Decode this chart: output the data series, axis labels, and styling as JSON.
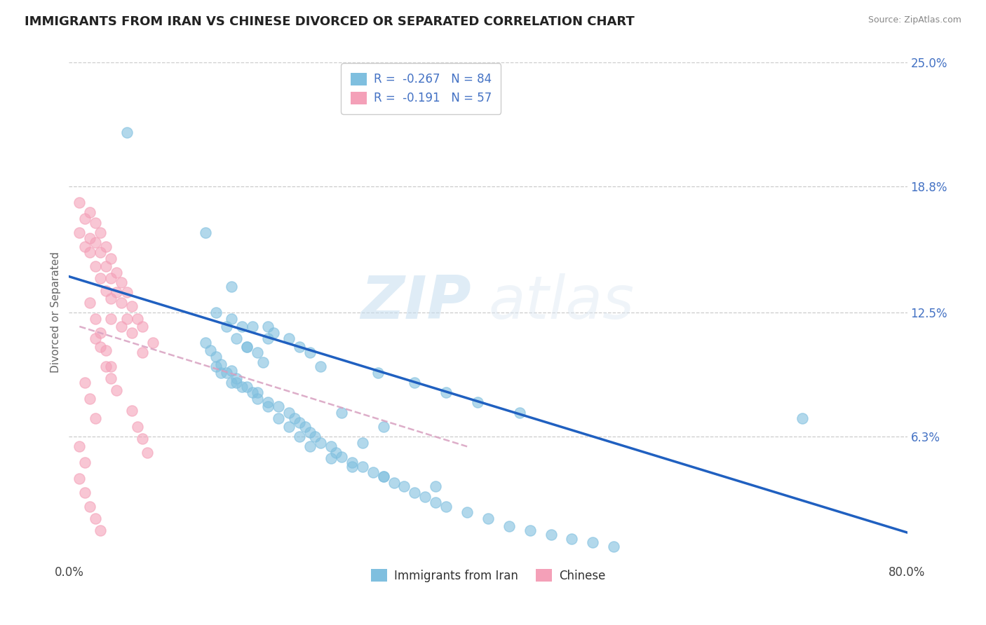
{
  "title": "IMMIGRANTS FROM IRAN VS CHINESE DIVORCED OR SEPARATED CORRELATION CHART",
  "source": "Source: ZipAtlas.com",
  "ylabel": "Divorced or Separated",
  "legend_label1": "Immigrants from Iran",
  "legend_label2": "Chinese",
  "r1": -0.267,
  "n1": 84,
  "r2": -0.191,
  "n2": 57,
  "xlim": [
    0.0,
    0.8
  ],
  "ylim": [
    0.0,
    0.25
  ],
  "xtick_labels": [
    "0.0%",
    "80.0%"
  ],
  "ytick_labels": [
    "25.0%",
    "18.8%",
    "12.5%",
    "6.3%"
  ],
  "ytick_vals": [
    0.25,
    0.188,
    0.125,
    0.063
  ],
  "watermark_zip": "ZIP",
  "watermark_atlas": "atlas",
  "color_iran": "#7fbfdf",
  "color_chinese": "#f4a0b8",
  "color_line_iran": "#2060c0",
  "color_line_chinese": "#d8a0c0",
  "background_color": "#ffffff",
  "line1_x0": 0.0,
  "line1_y0": 0.143,
  "line1_x1": 0.8,
  "line1_y1": 0.015,
  "line2_x0": 0.01,
  "line2_y0": 0.118,
  "line2_x1": 0.38,
  "line2_y1": 0.058,
  "iran_scatter_x": [
    0.055,
    0.13,
    0.155,
    0.175,
    0.19,
    0.195,
    0.14,
    0.15,
    0.16,
    0.17,
    0.18,
    0.185,
    0.155,
    0.165,
    0.17,
    0.19,
    0.21,
    0.22,
    0.23,
    0.24,
    0.14,
    0.145,
    0.15,
    0.155,
    0.16,
    0.165,
    0.175,
    0.18,
    0.19,
    0.2,
    0.21,
    0.215,
    0.22,
    0.225,
    0.23,
    0.235,
    0.24,
    0.25,
    0.255,
    0.26,
    0.27,
    0.28,
    0.29,
    0.3,
    0.31,
    0.32,
    0.33,
    0.34,
    0.35,
    0.36,
    0.38,
    0.4,
    0.42,
    0.44,
    0.46,
    0.48,
    0.5,
    0.52,
    0.295,
    0.33,
    0.36,
    0.39,
    0.43,
    0.13,
    0.135,
    0.14,
    0.145,
    0.155,
    0.16,
    0.17,
    0.18,
    0.19,
    0.2,
    0.21,
    0.22,
    0.23,
    0.25,
    0.27,
    0.3,
    0.28,
    0.35,
    0.7,
    0.3,
    0.26
  ],
  "iran_scatter_y": [
    0.215,
    0.165,
    0.138,
    0.118,
    0.118,
    0.115,
    0.125,
    0.118,
    0.112,
    0.108,
    0.105,
    0.1,
    0.122,
    0.118,
    0.108,
    0.112,
    0.112,
    0.108,
    0.105,
    0.098,
    0.098,
    0.095,
    0.095,
    0.09,
    0.09,
    0.088,
    0.085,
    0.082,
    0.08,
    0.078,
    0.075,
    0.072,
    0.07,
    0.068,
    0.065,
    0.063,
    0.06,
    0.058,
    0.055,
    0.053,
    0.05,
    0.048,
    0.045,
    0.043,
    0.04,
    0.038,
    0.035,
    0.033,
    0.03,
    0.028,
    0.025,
    0.022,
    0.018,
    0.016,
    0.014,
    0.012,
    0.01,
    0.008,
    0.095,
    0.09,
    0.085,
    0.08,
    0.075,
    0.11,
    0.106,
    0.103,
    0.099,
    0.096,
    0.092,
    0.088,
    0.085,
    0.078,
    0.072,
    0.068,
    0.063,
    0.058,
    0.052,
    0.048,
    0.043,
    0.06,
    0.038,
    0.072,
    0.068,
    0.075
  ],
  "chinese_scatter_x": [
    0.01,
    0.015,
    0.02,
    0.02,
    0.025,
    0.025,
    0.025,
    0.03,
    0.03,
    0.03,
    0.035,
    0.035,
    0.035,
    0.04,
    0.04,
    0.04,
    0.04,
    0.045,
    0.045,
    0.05,
    0.05,
    0.05,
    0.055,
    0.055,
    0.06,
    0.06,
    0.065,
    0.07,
    0.07,
    0.08,
    0.025,
    0.03,
    0.035,
    0.04,
    0.045,
    0.02,
    0.025,
    0.03,
    0.035,
    0.04,
    0.015,
    0.02,
    0.025,
    0.01,
    0.015,
    0.01,
    0.015,
    0.02,
    0.025,
    0.03,
    0.01,
    0.015,
    0.02,
    0.06,
    0.065,
    0.07,
    0.075
  ],
  "chinese_scatter_y": [
    0.165,
    0.158,
    0.175,
    0.155,
    0.17,
    0.16,
    0.148,
    0.165,
    0.155,
    0.142,
    0.158,
    0.148,
    0.136,
    0.152,
    0.142,
    0.132,
    0.122,
    0.145,
    0.135,
    0.14,
    0.13,
    0.118,
    0.135,
    0.122,
    0.128,
    0.115,
    0.122,
    0.118,
    0.105,
    0.11,
    0.112,
    0.108,
    0.098,
    0.092,
    0.086,
    0.13,
    0.122,
    0.115,
    0.106,
    0.098,
    0.09,
    0.082,
    0.072,
    0.058,
    0.05,
    0.042,
    0.035,
    0.028,
    0.022,
    0.016,
    0.18,
    0.172,
    0.162,
    0.076,
    0.068,
    0.062,
    0.055
  ]
}
